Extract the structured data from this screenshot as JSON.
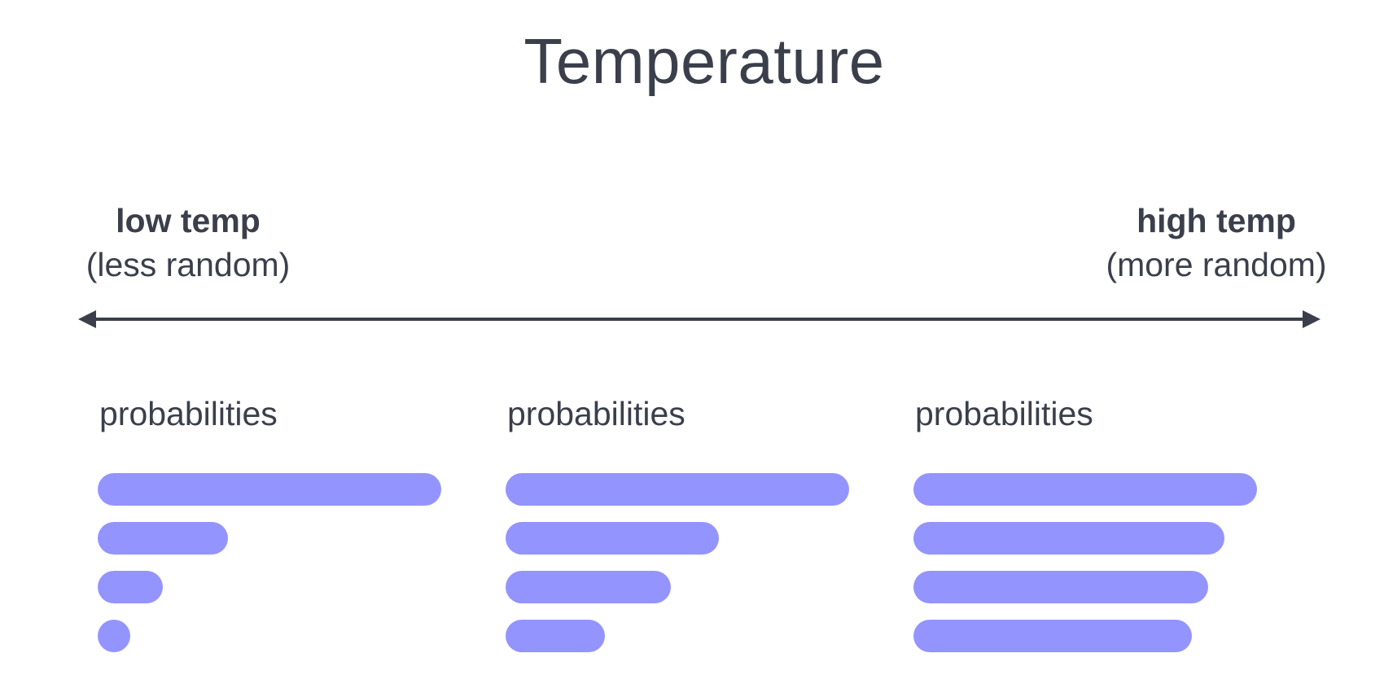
{
  "title": "Temperature",
  "low_end": {
    "head": "low temp",
    "sub": "(less random)"
  },
  "high_end": {
    "head": "high temp",
    "sub": "(more random)"
  },
  "colors": {
    "text": "#3a3f4b",
    "bar": "#9494ff",
    "arrow": "#3a3f4b"
  },
  "panels": [
    {
      "label": "probabilities",
      "bars": [
        1.0,
        0.38,
        0.19,
        0.095
      ]
    },
    {
      "label": "probabilities",
      "bars": [
        1.0,
        0.62,
        0.48,
        0.29
      ]
    },
    {
      "label": "probabilities",
      "bars": [
        1.0,
        0.905,
        0.857,
        0.81
      ]
    }
  ]
}
